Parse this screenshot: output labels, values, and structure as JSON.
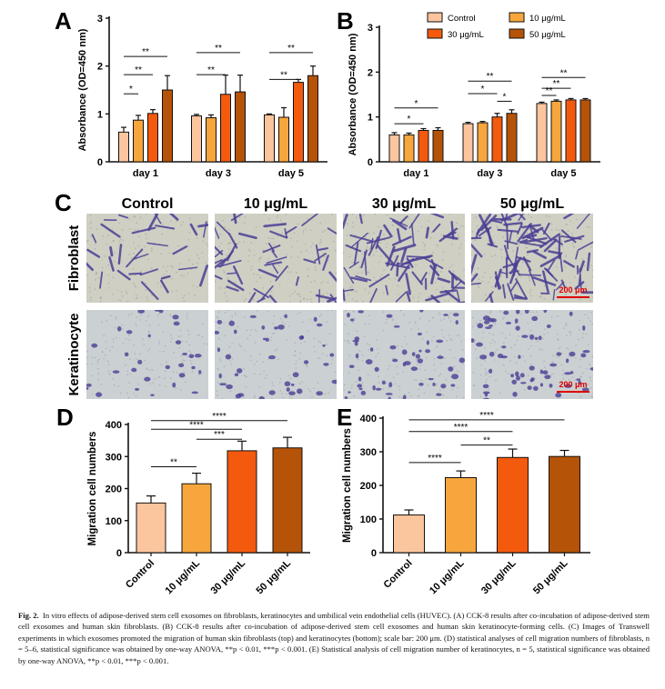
{
  "colors": {
    "control": "#fbc59e",
    "d10": "#f6a63c",
    "d30": "#f35a0e",
    "d50": "#b55308",
    "axis": "#111111",
    "micro_bg_fibro": "#cfcfc4",
    "micro_bg_kera": "#cbd0d2",
    "cell": "#4a3f95",
    "scalebar": "#e00000"
  },
  "panels": {
    "A": {
      "letter": "A"
    },
    "B": {
      "letter": "B"
    },
    "C": {
      "letter": "C"
    },
    "D": {
      "letter": "D"
    },
    "E": {
      "letter": "E"
    }
  },
  "legend": {
    "items": [
      "Control",
      "10 μg/mL",
      "30 μg/mL",
      "50 μg/mL"
    ]
  },
  "micrographs": {
    "col_labels": [
      "Control",
      "10 μg/mL",
      "30 μg/mL",
      "50 μg/mL"
    ],
    "row_labels": [
      "Fibroblast",
      "Keratinocyte"
    ],
    "scale_label": "200 μm",
    "density": [
      [
        1,
        1.6,
        2.4,
        3.2
      ],
      [
        1,
        1.3,
        1.8,
        2.2
      ]
    ]
  },
  "chart_data": [
    {
      "panel": "A",
      "type": "bar",
      "ylabel": "Absorbance (OD=450 nm)",
      "xlabel": "",
      "ylim": [
        0,
        3
      ],
      "yticks": [
        0,
        1,
        2,
        3
      ],
      "categories": [
        "day 1",
        "day 3",
        "day 5"
      ],
      "series": [
        {
          "name": "Control",
          "values": [
            0.62,
            0.96,
            0.98
          ],
          "err": [
            0.1,
            0.03,
            0.02
          ]
        },
        {
          "name": "10 μg/mL",
          "values": [
            0.87,
            0.92,
            0.93
          ],
          "err": [
            0.1,
            0.06,
            0.2
          ]
        },
        {
          "name": "30 μg/mL",
          "values": [
            1.01,
            1.41,
            1.66
          ],
          "err": [
            0.08,
            0.4,
            0.06
          ]
        },
        {
          "name": "50 μg/mL",
          "values": [
            1.5,
            1.46,
            1.8
          ],
          "err": [
            0.3,
            0.35,
            0.2
          ]
        }
      ],
      "sig": [
        {
          "cat": 0,
          "from": 0,
          "to": 1,
          "y": 1.42,
          "label": "*"
        },
        {
          "cat": 0,
          "from": 0,
          "to": 2,
          "y": 1.82,
          "label": "**"
        },
        {
          "cat": 0,
          "from": 0,
          "to": 3,
          "y": 2.2,
          "label": "**"
        },
        {
          "cat": 1,
          "from": 0,
          "to": 2,
          "y": 1.82,
          "label": "**"
        },
        {
          "cat": 1,
          "from": 0,
          "to": 3,
          "y": 2.28,
          "label": "**"
        },
        {
          "cat": 2,
          "from": 0,
          "to": 2,
          "y": 1.72,
          "label": "**"
        },
        {
          "cat": 2,
          "from": 0,
          "to": 3,
          "y": 2.28,
          "label": "**"
        }
      ]
    },
    {
      "panel": "B",
      "type": "bar",
      "ylabel": "Absorbance (OD=450 nm)",
      "xlabel": "",
      "ylim": [
        0,
        3
      ],
      "yticks": [
        0,
        1,
        2,
        3
      ],
      "categories": [
        "day 1",
        "day 3",
        "day 5"
      ],
      "series": [
        {
          "name": "Control",
          "values": [
            0.6,
            0.85,
            1.3
          ],
          "err": [
            0.05,
            0.03,
            0.03
          ]
        },
        {
          "name": "10 μg/mL",
          "values": [
            0.6,
            0.87,
            1.35
          ],
          "err": [
            0.04,
            0.03,
            0.03
          ]
        },
        {
          "name": "30 μg/mL",
          "values": [
            0.7,
            1.0,
            1.38
          ],
          "err": [
            0.04,
            0.08,
            0.03
          ]
        },
        {
          "name": "50 μg/mL",
          "values": [
            0.7,
            1.08,
            1.38
          ],
          "err": [
            0.06,
            0.08,
            0.03
          ]
        }
      ],
      "sig": [
        {
          "cat": 0,
          "from": 0,
          "to": 2,
          "y": 0.85,
          "label": "*"
        },
        {
          "cat": 0,
          "from": 0,
          "to": 3,
          "y": 1.2,
          "label": "*"
        },
        {
          "cat": 1,
          "from": 2,
          "to": 3,
          "y": 1.35,
          "label": "*"
        },
        {
          "cat": 1,
          "from": 0,
          "to": 2,
          "y": 1.52,
          "label": "*"
        },
        {
          "cat": 1,
          "from": 0,
          "to": 3,
          "y": 1.8,
          "label": "**"
        },
        {
          "cat": 2,
          "from": 0,
          "to": 1,
          "y": 1.48,
          "label": "**"
        },
        {
          "cat": 2,
          "from": 0,
          "to": 2,
          "y": 1.64,
          "label": "**"
        },
        {
          "cat": 2,
          "from": 0,
          "to": 3,
          "y": 1.88,
          "label": "**"
        }
      ]
    },
    {
      "panel": "D",
      "type": "bar",
      "ylabel": "Migration cell numbers",
      "xlabel": "",
      "ylim": [
        0,
        400
      ],
      "yticks": [
        0,
        100,
        200,
        300,
        400
      ],
      "categories": [
        "Control",
        "10 μg/mL",
        "30 μg/mL",
        "50 μg/mL"
      ],
      "values": [
        155,
        215,
        318,
        327
      ],
      "err": [
        22,
        33,
        30,
        33
      ],
      "sig": [
        {
          "from": 0,
          "to": 1,
          "y": 268,
          "label": "**"
        },
        {
          "from": 1,
          "to": 2,
          "y": 354,
          "label": "***"
        },
        {
          "from": 0,
          "to": 2,
          "y": 385,
          "label": "****"
        },
        {
          "from": 0,
          "to": 3,
          "y": 412,
          "label": "****"
        }
      ]
    },
    {
      "panel": "E",
      "type": "bar",
      "ylabel": "Migration cell numbers",
      "xlabel": "",
      "ylim": [
        0,
        400
      ],
      "yticks": [
        0,
        100,
        200,
        300,
        400
      ],
      "categories": [
        "Control",
        "10 μg/mL",
        "30 μg/mL",
        "50 μg/mL"
      ],
      "values": [
        112,
        223,
        283,
        286
      ],
      "err": [
        15,
        20,
        25,
        18
      ],
      "sig": [
        {
          "from": 0,
          "to": 1,
          "y": 268,
          "label": "****"
        },
        {
          "from": 1,
          "to": 2,
          "y": 320,
          "label": "**"
        },
        {
          "from": 0,
          "to": 2,
          "y": 360,
          "label": "****"
        },
        {
          "from": 0,
          "to": 3,
          "y": 395,
          "label": "****"
        }
      ]
    }
  ],
  "caption": {
    "label": "Fig. 2.",
    "text": "In vitro effects of adipose-derived stem cell exosomes on fibroblasts, keratinocytes and umbilical vein endothelial cells (HUVEC). (A) CCK-8 results after co-incubation of adipose-derived stem cell exosomes and human skin fibroblasts. (B) CCK-8 results after co-incubation of adipose-derived stem cell exosomes and human skin keratinocyte-forming cells. (C) Images of Transwell experiments in which exosomes promoted the migration of human skin fibroblasts (top) and keratinocytes (bottom); scale bar: 200 μm. (D) statistical analyses of cell migration numbers of fibroblasts, n = 5–6, statistical significance was obtained by one-way ANOVA, **p < 0.01, ***p < 0.001. (E) Statistical analysis of cell migration number of keratinocytes, n = 5, statistical significance was obtained by one-way ANOVA, **p < 0.01, ***p < 0.001."
  }
}
